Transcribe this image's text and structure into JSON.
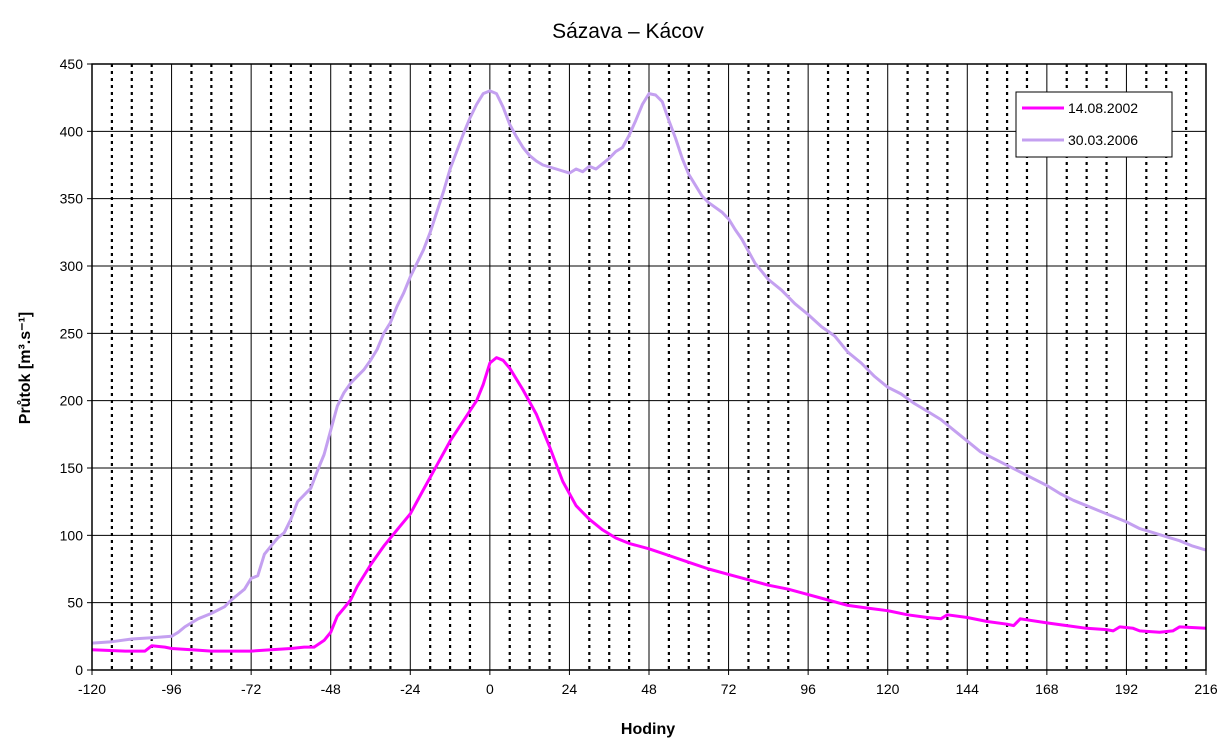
{
  "chart_data": {
    "type": "line",
    "title": "Sázava – Kácov",
    "xlabel": "Hodiny",
    "ylabel": "Průtok [m³.s⁻¹]",
    "xlim": [
      -120,
      216
    ],
    "ylim": [
      0,
      450
    ],
    "x_ticks": [
      -120,
      -96,
      -72,
      -48,
      -24,
      0,
      24,
      48,
      72,
      96,
      120,
      144,
      168,
      192,
      216
    ],
    "y_ticks": [
      0,
      50,
      100,
      150,
      200,
      250,
      300,
      350,
      400,
      450
    ],
    "grid": "major solid, minor dotted every 6 h",
    "legend_position": "top-right",
    "series": [
      {
        "name": "14.08.2002",
        "color": "#ff00ff",
        "points": [
          [
            -120,
            15
          ],
          [
            -110,
            14
          ],
          [
            -104,
            14
          ],
          [
            -102,
            18
          ],
          [
            -98,
            17
          ],
          [
            -96,
            16
          ],
          [
            -90,
            15
          ],
          [
            -84,
            14
          ],
          [
            -72,
            14
          ],
          [
            -66,
            15
          ],
          [
            -60,
            16
          ],
          [
            -56,
            17
          ],
          [
            -53,
            17
          ],
          [
            -50,
            22
          ],
          [
            -48,
            28
          ],
          [
            -46,
            40
          ],
          [
            -44,
            46
          ],
          [
            -42,
            52
          ],
          [
            -40,
            62
          ],
          [
            -36,
            78
          ],
          [
            -32,
            92
          ],
          [
            -28,
            104
          ],
          [
            -24,
            116
          ],
          [
            -20,
            134
          ],
          [
            -16,
            152
          ],
          [
            -12,
            170
          ],
          [
            -8,
            185
          ],
          [
            -4,
            200
          ],
          [
            -2,
            212
          ],
          [
            0,
            228
          ],
          [
            2,
            232
          ],
          [
            4,
            230
          ],
          [
            6,
            224
          ],
          [
            10,
            208
          ],
          [
            14,
            190
          ],
          [
            18,
            166
          ],
          [
            22,
            140
          ],
          [
            26,
            122
          ],
          [
            30,
            112
          ],
          [
            34,
            104
          ],
          [
            38,
            98
          ],
          [
            42,
            94
          ],
          [
            48,
            90
          ],
          [
            54,
            85
          ],
          [
            60,
            80
          ],
          [
            66,
            75
          ],
          [
            72,
            71
          ],
          [
            78,
            67
          ],
          [
            84,
            63
          ],
          [
            90,
            60
          ],
          [
            96,
            56
          ],
          [
            102,
            52
          ],
          [
            108,
            48
          ],
          [
            114,
            46
          ],
          [
            120,
            44
          ],
          [
            126,
            41
          ],
          [
            132,
            39
          ],
          [
            136,
            38
          ],
          [
            138,
            41
          ],
          [
            144,
            39
          ],
          [
            150,
            36
          ],
          [
            156,
            34
          ],
          [
            158,
            33
          ],
          [
            160,
            38
          ],
          [
            168,
            35
          ],
          [
            174,
            33
          ],
          [
            180,
            31
          ],
          [
            186,
            30
          ],
          [
            188,
            29
          ],
          [
            190,
            32
          ],
          [
            194,
            31
          ],
          [
            196,
            29
          ],
          [
            202,
            28
          ],
          [
            206,
            29
          ],
          [
            208,
            32
          ],
          [
            216,
            31
          ]
        ]
      },
      {
        "name": "30.03.2006",
        "color": "#c4a0f0",
        "points": [
          [
            -120,
            20
          ],
          [
            -114,
            21
          ],
          [
            -108,
            23
          ],
          [
            -102,
            24
          ],
          [
            -96,
            25
          ],
          [
            -94,
            28
          ],
          [
            -92,
            32
          ],
          [
            -88,
            38
          ],
          [
            -84,
            42
          ],
          [
            -80,
            47
          ],
          [
            -78,
            52
          ],
          [
            -74,
            60
          ],
          [
            -72,
            68
          ],
          [
            -70,
            70
          ],
          [
            -68,
            86
          ],
          [
            -66,
            92
          ],
          [
            -64,
            98
          ],
          [
            -62,
            102
          ],
          [
            -60,
            112
          ],
          [
            -58,
            125
          ],
          [
            -54,
            135
          ],
          [
            -52,
            148
          ],
          [
            -50,
            160
          ],
          [
            -48,
            178
          ],
          [
            -46,
            196
          ],
          [
            -44,
            206
          ],
          [
            -42,
            213
          ],
          [
            -40,
            218
          ],
          [
            -38,
            223
          ],
          [
            -36,
            230
          ],
          [
            -34,
            238
          ],
          [
            -32,
            250
          ],
          [
            -30,
            258
          ],
          [
            -28,
            270
          ],
          [
            -26,
            280
          ],
          [
            -24,
            292
          ],
          [
            -20,
            312
          ],
          [
            -18,
            325
          ],
          [
            -16,
            340
          ],
          [
            -14,
            355
          ],
          [
            -12,
            372
          ],
          [
            -10,
            385
          ],
          [
            -8,
            398
          ],
          [
            -6,
            410
          ],
          [
            -4,
            420
          ],
          [
            -2,
            428
          ],
          [
            0,
            430
          ],
          [
            2,
            428
          ],
          [
            4,
            418
          ],
          [
            6,
            405
          ],
          [
            8,
            396
          ],
          [
            10,
            388
          ],
          [
            12,
            382
          ],
          [
            14,
            378
          ],
          [
            16,
            375
          ],
          [
            20,
            372
          ],
          [
            24,
            369
          ],
          [
            26,
            372
          ],
          [
            28,
            370
          ],
          [
            30,
            374
          ],
          [
            32,
            372
          ],
          [
            34,
            376
          ],
          [
            36,
            380
          ],
          [
            38,
            385
          ],
          [
            40,
            388
          ],
          [
            42,
            397
          ],
          [
            44,
            408
          ],
          [
            46,
            420
          ],
          [
            48,
            428
          ],
          [
            50,
            427
          ],
          [
            52,
            422
          ],
          [
            54,
            408
          ],
          [
            56,
            395
          ],
          [
            58,
            380
          ],
          [
            60,
            368
          ],
          [
            62,
            360
          ],
          [
            64,
            352
          ],
          [
            66,
            347
          ],
          [
            70,
            340
          ],
          [
            72,
            335
          ],
          [
            74,
            327
          ],
          [
            76,
            320
          ],
          [
            80,
            302
          ],
          [
            84,
            290
          ],
          [
            88,
            282
          ],
          [
            92,
            272
          ],
          [
            96,
            264
          ],
          [
            100,
            255
          ],
          [
            104,
            248
          ],
          [
            108,
            236
          ],
          [
            112,
            228
          ],
          [
            116,
            218
          ],
          [
            120,
            210
          ],
          [
            124,
            205
          ],
          [
            128,
            198
          ],
          [
            132,
            192
          ],
          [
            136,
            186
          ],
          [
            140,
            178
          ],
          [
            144,
            170
          ],
          [
            148,
            162
          ],
          [
            152,
            157
          ],
          [
            156,
            152
          ],
          [
            160,
            147
          ],
          [
            164,
            142
          ],
          [
            168,
            137
          ],
          [
            172,
            131
          ],
          [
            176,
            126
          ],
          [
            180,
            122
          ],
          [
            184,
            118
          ],
          [
            188,
            114
          ],
          [
            192,
            110
          ],
          [
            196,
            105
          ],
          [
            200,
            102
          ],
          [
            204,
            99
          ],
          [
            208,
            96
          ],
          [
            212,
            92
          ],
          [
            216,
            89
          ]
        ]
      }
    ]
  }
}
